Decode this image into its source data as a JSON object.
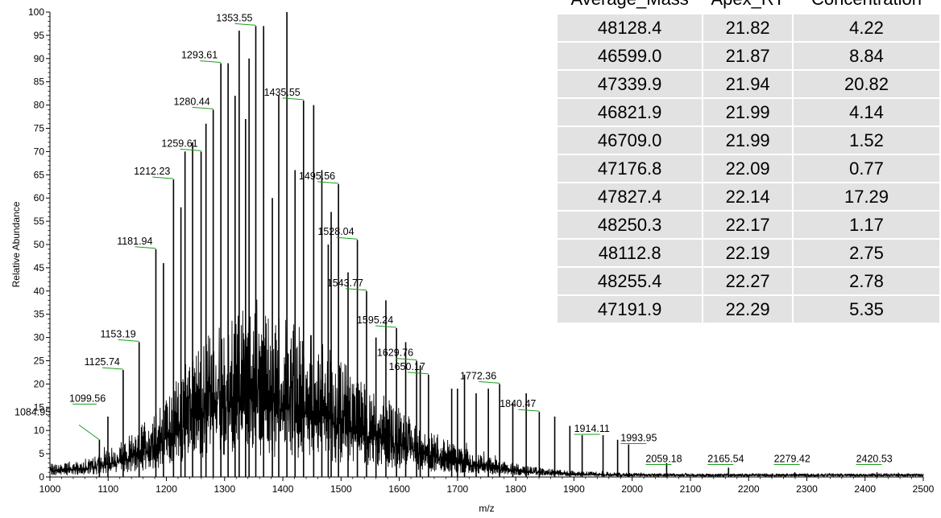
{
  "chart_data": {
    "type": "line",
    "xlabel": "m/z",
    "ylabel": "Relative Abundance",
    "xlim": [
      1000,
      2500
    ],
    "ylim": [
      0,
      100
    ],
    "x_ticks": [
      1000,
      1100,
      1200,
      1300,
      1400,
      1500,
      1600,
      1700,
      1800,
      1900,
      2000,
      2100,
      2200,
      2300,
      2400,
      2500
    ],
    "y_ticks": [
      0,
      5,
      10,
      15,
      20,
      25,
      30,
      35,
      40,
      45,
      50,
      55,
      60,
      65,
      70,
      75,
      80,
      85,
      90,
      95,
      100
    ],
    "annotated_peaks": [
      {
        "mz": 1084.95,
        "label": "1084.95",
        "intensity": 8
      },
      {
        "mz": 1099.56,
        "label": "1099.56",
        "intensity": 13
      },
      {
        "mz": 1125.74,
        "label": "1125.74",
        "intensity": 23
      },
      {
        "mz": 1153.19,
        "label": "1153.19",
        "intensity": 29
      },
      {
        "mz": 1181.94,
        "label": "1181.94",
        "intensity": 49
      },
      {
        "mz": 1212.23,
        "label": "1212.23",
        "intensity": 64
      },
      {
        "mz": 1259.61,
        "label": "1259.61",
        "intensity": 70
      },
      {
        "mz": 1280.44,
        "label": "1280.44",
        "intensity": 79
      },
      {
        "mz": 1293.61,
        "label": "1293.61",
        "intensity": 89
      },
      {
        "mz": 1353.55,
        "label": "1353.55",
        "intensity": 97
      },
      {
        "mz": 1435.55,
        "label": "1435.55",
        "intensity": 81
      },
      {
        "mz": 1495.56,
        "label": "1495.56",
        "intensity": 63
      },
      {
        "mz": 1528.04,
        "label": "1528.04",
        "intensity": 51
      },
      {
        "mz": 1543.77,
        "label": "1543.77",
        "intensity": 40
      },
      {
        "mz": 1595.24,
        "label": "1595.24",
        "intensity": 32
      },
      {
        "mz": 1629.76,
        "label": "1629.76",
        "intensity": 25
      },
      {
        "mz": 1650.17,
        "label": "1650.17",
        "intensity": 22
      },
      {
        "mz": 1772.36,
        "label": "1772.36",
        "intensity": 20
      },
      {
        "mz": 1840.47,
        "label": "1840.47",
        "intensity": 14
      },
      {
        "mz": 1914.11,
        "label": "1914.11",
        "intensity": 9
      },
      {
        "mz": 1993.95,
        "label": "1993.95",
        "intensity": 7
      },
      {
        "mz": 2059.18,
        "label": "2059.18",
        "intensity": 3
      },
      {
        "mz": 2165.54,
        "label": "2165.54",
        "intensity": 2
      },
      {
        "mz": 2279.42,
        "label": "2279.42",
        "intensity": 1
      },
      {
        "mz": 2420.53,
        "label": "2420.53",
        "intensity": 1
      }
    ],
    "unlabeled_peaks": [
      {
        "mz": 1195,
        "intensity": 46
      },
      {
        "mz": 1225,
        "intensity": 58
      },
      {
        "mz": 1232,
        "intensity": 70
      },
      {
        "mz": 1245,
        "intensity": 72
      },
      {
        "mz": 1268,
        "intensity": 76
      },
      {
        "mz": 1306,
        "intensity": 89
      },
      {
        "mz": 1318,
        "intensity": 82
      },
      {
        "mz": 1325,
        "intensity": 96
      },
      {
        "mz": 1336,
        "intensity": 77
      },
      {
        "mz": 1342,
        "intensity": 90
      },
      {
        "mz": 1367,
        "intensity": 97
      },
      {
        "mz": 1382,
        "intensity": 60
      },
      {
        "mz": 1393,
        "intensity": 82
      },
      {
        "mz": 1407,
        "intensity": 100
      },
      {
        "mz": 1421,
        "intensity": 66
      },
      {
        "mz": 1453,
        "intensity": 80
      },
      {
        "mz": 1467,
        "intensity": 66
      },
      {
        "mz": 1478,
        "intensity": 50
      },
      {
        "mz": 1483,
        "intensity": 57
      },
      {
        "mz": 1512,
        "intensity": 44
      },
      {
        "mz": 1560,
        "intensity": 30
      },
      {
        "mz": 1577,
        "intensity": 38
      },
      {
        "mz": 1611,
        "intensity": 29
      },
      {
        "mz": 1636,
        "intensity": 24
      },
      {
        "mz": 1690,
        "intensity": 19
      },
      {
        "mz": 1700,
        "intensity": 19
      },
      {
        "mz": 1712,
        "intensity": 22
      },
      {
        "mz": 1732,
        "intensity": 18
      },
      {
        "mz": 1753,
        "intensity": 19
      },
      {
        "mz": 1795,
        "intensity": 16
      },
      {
        "mz": 1818,
        "intensity": 18
      },
      {
        "mz": 1867,
        "intensity": 13
      },
      {
        "mz": 1893,
        "intensity": 11
      },
      {
        "mz": 1950,
        "intensity": 9
      },
      {
        "mz": 1975,
        "intensity": 8
      }
    ]
  },
  "table": {
    "headers": [
      "Average_Mass",
      "Apex_RT",
      "Concentration"
    ],
    "rows": [
      [
        "48128.4",
        "21.82",
        "4.22"
      ],
      [
        "46599.0",
        "21.87",
        "8.84"
      ],
      [
        "47339.9",
        "21.94",
        "20.82"
      ],
      [
        "46821.9",
        "21.99",
        "4.14"
      ],
      [
        "46709.0",
        "21.99",
        "1.52"
      ],
      [
        "47176.8",
        "22.09",
        "0.77"
      ],
      [
        "47827.4",
        "22.14",
        "17.29"
      ],
      [
        "48250.3",
        "22.17",
        "1.17"
      ],
      [
        "48112.8",
        "22.19",
        "2.75"
      ],
      [
        "48255.4",
        "22.27",
        "2.78"
      ],
      [
        "47191.9",
        "22.29",
        "5.35"
      ]
    ]
  },
  "colors": {
    "trace": "#000000",
    "label_leader": "#1a9e1a",
    "table_cell": "#e2e2e2"
  }
}
